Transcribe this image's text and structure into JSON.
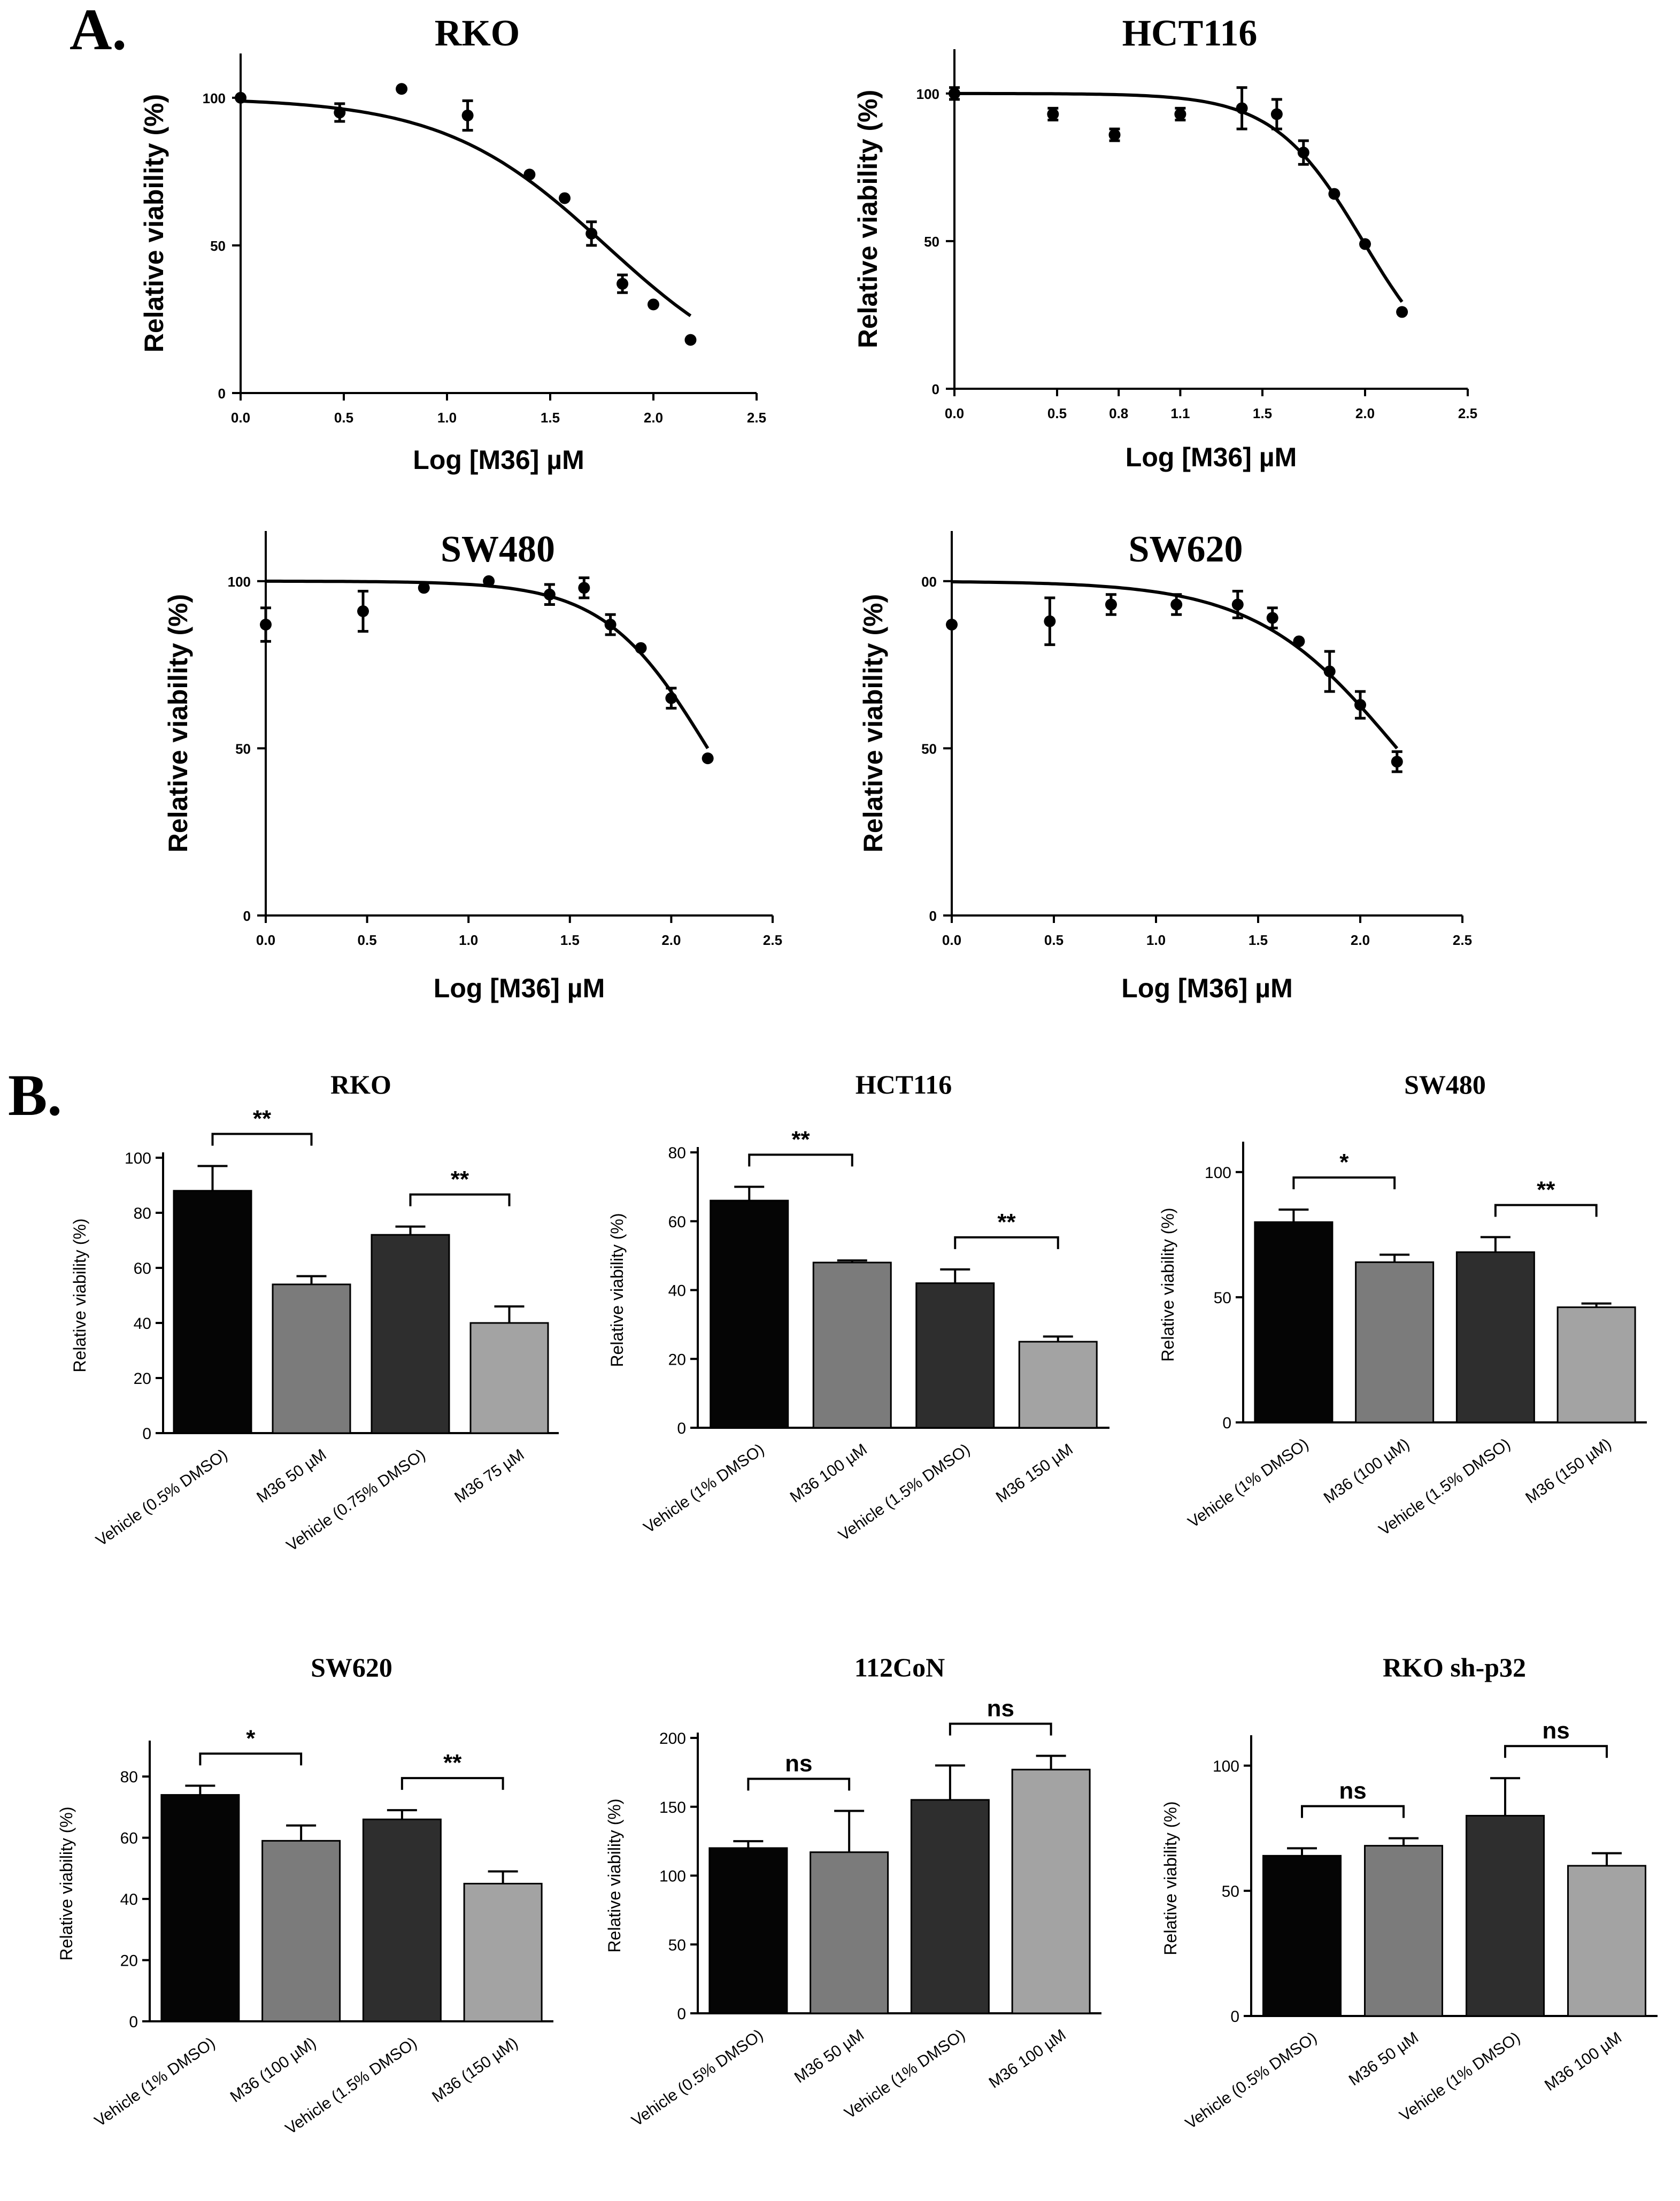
{
  "figure": {
    "panel_a_label": "A.",
    "panel_b_label": "B."
  },
  "chart_data": [
    {
      "id": "a1",
      "panel": "A",
      "type": "scatter",
      "title": "RKO",
      "xlabel": "Log [M36] µM",
      "ylabel": "Relative viability (%)",
      "xlim": [
        0,
        2.5
      ],
      "ylim": [
        0,
        115
      ],
      "x_ticks": [
        "0.0",
        "0.5",
        "1.0",
        "1.5",
        "2.0",
        "2.5"
      ],
      "y_ticks": [
        "0",
        "50",
        "100"
      ],
      "points": [
        {
          "x": 0.0,
          "y": 100,
          "err": 0
        },
        {
          "x": 0.48,
          "y": 95,
          "err": 3
        },
        {
          "x": 0.78,
          "y": 103,
          "err": 0
        },
        {
          "x": 1.1,
          "y": 94,
          "err": 5
        },
        {
          "x": 1.4,
          "y": 74,
          "err": 0
        },
        {
          "x": 1.57,
          "y": 66,
          "err": 0
        },
        {
          "x": 1.7,
          "y": 54,
          "err": 4
        },
        {
          "x": 1.85,
          "y": 37,
          "err": 3
        },
        {
          "x": 2.0,
          "y": 30,
          "err": 0
        },
        {
          "x": 2.18,
          "y": 18,
          "err": 0
        }
      ],
      "curve": {
        "top": 100,
        "bottom": 0,
        "log_ic50": 1.77,
        "hill": 1.1,
        "x_range": [
          0,
          2.18
        ]
      }
    },
    {
      "id": "a2",
      "panel": "A",
      "type": "scatter",
      "title": "HCT116",
      "xlabel": "Log [M36] µM",
      "ylabel": "Relative viability (%)",
      "xlim": [
        0,
        2.5
      ],
      "ylim": [
        0,
        115
      ],
      "x_ticks": [
        "0.0",
        "0.5",
        "0.8",
        "1.1",
        "1.5",
        "2.0",
        "2.5"
      ],
      "x_tick_values": [
        0.0,
        0.5,
        0.8,
        1.1,
        1.5,
        2.0,
        2.5
      ],
      "y_ticks": [
        "0",
        "50",
        "100"
      ],
      "points": [
        {
          "x": 0.0,
          "y": 100,
          "err": 2
        },
        {
          "x": 0.48,
          "y": 93,
          "err": 2
        },
        {
          "x": 0.78,
          "y": 86,
          "err": 2
        },
        {
          "x": 1.1,
          "y": 93,
          "err": 2
        },
        {
          "x": 1.4,
          "y": 95,
          "err": 7
        },
        {
          "x": 1.57,
          "y": 93,
          "err": 5
        },
        {
          "x": 1.7,
          "y": 80,
          "err": 4
        },
        {
          "x": 1.85,
          "y": 66,
          "err": 0
        },
        {
          "x": 2.0,
          "y": 49,
          "err": 0
        },
        {
          "x": 2.18,
          "y": 26,
          "err": 0
        }
      ],
      "curve": {
        "top": 100,
        "bottom": 0,
        "log_ic50": 1.99,
        "hill": 2.0,
        "x_range": [
          0,
          2.18
        ]
      }
    },
    {
      "id": "a3",
      "panel": "A",
      "type": "scatter",
      "title": "SW480",
      "xlabel": "Log [M36] µM",
      "ylabel": "Relative viability (%)",
      "xlim": [
        0,
        2.5
      ],
      "ylim": [
        0,
        115
      ],
      "x_ticks": [
        "0.0",
        "0.5",
        "1.0",
        "1.5",
        "2.0",
        "2.5"
      ],
      "y_ticks": [
        "0",
        "50",
        "100"
      ],
      "points": [
        {
          "x": 0.0,
          "y": 87,
          "err": 5
        },
        {
          "x": 0.48,
          "y": 91,
          "err": 6
        },
        {
          "x": 0.78,
          "y": 98,
          "err": 0
        },
        {
          "x": 1.1,
          "y": 100,
          "err": 0
        },
        {
          "x": 1.4,
          "y": 96,
          "err": 3
        },
        {
          "x": 1.57,
          "y": 98,
          "err": 3
        },
        {
          "x": 1.7,
          "y": 87,
          "err": 3
        },
        {
          "x": 1.85,
          "y": 80,
          "err": 0
        },
        {
          "x": 2.0,
          "y": 65,
          "err": 3
        },
        {
          "x": 2.18,
          "y": 47,
          "err": 0
        }
      ],
      "curve": {
        "top": 100,
        "bottom": 0,
        "log_ic50": 2.18,
        "hill": 1.7,
        "x_range": [
          0,
          2.18
        ]
      }
    },
    {
      "id": "a4",
      "panel": "A",
      "type": "scatter",
      "title": "SW620",
      "xlabel": "Log [M36] µM",
      "ylabel": "Relative viability (%)",
      "xlim": [
        0,
        2.5
      ],
      "ylim": [
        0,
        115
      ],
      "x_ticks": [
        "0.0",
        "0.5",
        "1.0",
        "1.5",
        "2.0",
        "2.5"
      ],
      "y_ticks": [
        "0",
        "50",
        "00"
      ],
      "points": [
        {
          "x": 0.0,
          "y": 87,
          "err": 0
        },
        {
          "x": 0.48,
          "y": 88,
          "err": 7
        },
        {
          "x": 0.78,
          "y": 93,
          "err": 3
        },
        {
          "x": 1.1,
          "y": 93,
          "err": 3
        },
        {
          "x": 1.4,
          "y": 93,
          "err": 4
        },
        {
          "x": 1.57,
          "y": 89,
          "err": 3
        },
        {
          "x": 1.7,
          "y": 82,
          "err": 0
        },
        {
          "x": 1.85,
          "y": 73,
          "err": 6
        },
        {
          "x": 2.0,
          "y": 63,
          "err": 4
        },
        {
          "x": 2.18,
          "y": 46,
          "err": 3
        }
      ],
      "curve": {
        "top": 100,
        "bottom": 0,
        "log_ic50": 2.18,
        "hill": 1.25,
        "x_range": [
          0,
          2.18
        ]
      }
    },
    {
      "id": "b1",
      "panel": "B",
      "type": "bar",
      "title": "RKO",
      "ylabel": "Relative viability (%)",
      "ylim": [
        0,
        100
      ],
      "y_ticks": [
        0,
        20,
        40,
        60,
        80,
        100
      ],
      "categories": [
        "Vehicle (0.5% DMSO)",
        "M36 50 µM",
        "Vehicle (0.75% DMSO)",
        "M36 75 µM"
      ],
      "values": [
        88,
        54,
        72,
        40
      ],
      "errors": [
        9,
        3,
        3,
        6
      ],
      "colors": [
        "#050505",
        "#7b7b7b",
        "#2e2e2e",
        "#a3a3a3"
      ],
      "significance": [
        {
          "bars": [
            0,
            1
          ],
          "label": "**"
        },
        {
          "bars": [
            2,
            3
          ],
          "label": "**"
        }
      ]
    },
    {
      "id": "b2",
      "panel": "B",
      "type": "bar",
      "title": "HCT116",
      "ylabel": "Relative viability (%)",
      "ylim": [
        0,
        80
      ],
      "y_ticks": [
        0,
        20,
        40,
        60,
        80
      ],
      "categories": [
        "Vehicle (1% DMSO)",
        "M36 100 µM",
        "Vehicle (1.5% DMSO)",
        "M36 150 µM"
      ],
      "values": [
        66,
        48,
        42,
        25
      ],
      "errors": [
        4,
        0.6,
        4,
        1.5
      ],
      "colors": [
        "#050505",
        "#7b7b7b",
        "#2e2e2e",
        "#a3a3a3"
      ],
      "significance": [
        {
          "bars": [
            0,
            1
          ],
          "label": "**"
        },
        {
          "bars": [
            2,
            3
          ],
          "label": "**"
        }
      ]
    },
    {
      "id": "b3",
      "panel": "B",
      "type": "bar",
      "title": "SW480",
      "ylabel": "Relative viability (%)",
      "ylim": [
        0,
        110
      ],
      "y_ticks": [
        0,
        50,
        100
      ],
      "categories": [
        "Vehicle (1% DMSO)",
        "M36 (100 µM)",
        "Vehicle (1.5% DMSO)",
        "M36 (150 µM)"
      ],
      "values": [
        80,
        64,
        68,
        46
      ],
      "errors": [
        5,
        3,
        6,
        1.5
      ],
      "colors": [
        "#050505",
        "#7b7b7b",
        "#2e2e2e",
        "#a3a3a3"
      ],
      "significance": [
        {
          "bars": [
            0,
            1
          ],
          "label": "*"
        },
        {
          "bars": [
            2,
            3
          ],
          "label": "**"
        }
      ]
    },
    {
      "id": "b4",
      "panel": "B",
      "type": "bar",
      "title": "SW620",
      "ylabel": "Relative viability (%)",
      "ylim": [
        0,
        90
      ],
      "y_ticks": [
        0,
        20,
        40,
        60,
        80
      ],
      "categories": [
        "Vehicle (1% DMSO)",
        "M36 (100 µM)",
        "Vehicle (1.5% DMSO)",
        "M36 (150 µM)"
      ],
      "values": [
        74,
        59,
        66,
        45
      ],
      "errors": [
        3,
        5,
        3,
        4
      ],
      "colors": [
        "#050505",
        "#7b7b7b",
        "#2e2e2e",
        "#a3a3a3"
      ],
      "significance": [
        {
          "bars": [
            0,
            1
          ],
          "label": "*"
        },
        {
          "bars": [
            2,
            3
          ],
          "label": "**"
        }
      ]
    },
    {
      "id": "b5",
      "panel": "B",
      "type": "bar",
      "title": "112CoN",
      "ylabel": "Relative viability (%)",
      "ylim": [
        0,
        200
      ],
      "y_ticks": [
        0,
        50,
        100,
        150,
        200
      ],
      "categories": [
        "Vehicle (0.5% DMSO)",
        "M36 50 µM",
        "Vehicle (1% DMSO)",
        "M36 100 µM"
      ],
      "values": [
        120,
        117,
        155,
        177
      ],
      "errors": [
        5,
        30,
        25,
        10
      ],
      "colors": [
        "#050505",
        "#7b7b7b",
        "#2e2e2e",
        "#a3a3a3"
      ],
      "significance": [
        {
          "bars": [
            0,
            1
          ],
          "label": "ns"
        },
        {
          "bars": [
            2,
            3
          ],
          "label": "ns"
        }
      ]
    },
    {
      "id": "b6",
      "panel": "B",
      "type": "bar",
      "title": "RKO sh-p32",
      "ylabel": "Relative viability (%)",
      "ylim": [
        0,
        110
      ],
      "y_ticks": [
        0,
        50,
        100
      ],
      "categories": [
        "Vehicle (0.5% DMSO)",
        "M36 50 µM",
        "Vehicle (1% DMSO)",
        "M36 100 µM"
      ],
      "values": [
        64,
        68,
        80,
        60
      ],
      "errors": [
        3,
        3,
        15,
        5
      ],
      "colors": [
        "#050505",
        "#7b7b7b",
        "#2e2e2e",
        "#a3a3a3"
      ],
      "significance": [
        {
          "bars": [
            0,
            1
          ],
          "label": "ns"
        },
        {
          "bars": [
            2,
            3
          ],
          "label": "ns"
        }
      ]
    }
  ]
}
